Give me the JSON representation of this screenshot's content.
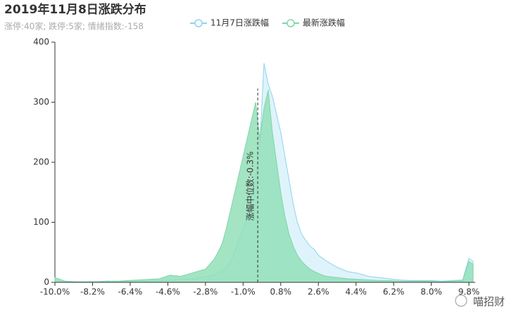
{
  "chart_data": {
    "type": "area",
    "title": "2019年11月8日涨跌分布",
    "subtitle": "涨停:40家; 跌停:5家; 情绪指数:-158",
    "watermark": "喵招财",
    "x": [
      -10,
      -9.5,
      -9,
      -8.5,
      -8,
      -7.5,
      -7,
      -6.5,
      -6,
      -5.5,
      -5,
      -4.5,
      -4,
      -3.5,
      -3,
      -2.8,
      -2.6,
      -2.4,
      -2.2,
      -2,
      -1.8,
      -1.6,
      -1.4,
      -1.2,
      -1,
      -0.8,
      -0.6,
      -0.4,
      -0.2,
      0,
      0.2,
      0.4,
      0.6,
      0.8,
      1,
      1.2,
      1.4,
      1.6,
      1.8,
      2,
      2.2,
      2.4,
      2.6,
      2.8,
      3,
      3.5,
      4,
      4.5,
      5,
      5.5,
      6,
      6.5,
      7,
      7.5,
      8,
      8.5,
      9,
      9.5,
      9.8,
      10
    ],
    "series": [
      {
        "name": "11月7日涨跌幅",
        "color": "#8fd3f0",
        "fill": "#dff3fb",
        "values": [
          3,
          1,
          1,
          1,
          1,
          2,
          1,
          2,
          2,
          2,
          3,
          3,
          5,
          5,
          8,
          10,
          10,
          12,
          15,
          20,
          25,
          35,
          50,
          70,
          90,
          110,
          140,
          170,
          230,
          365,
          330,
          310,
          280,
          250,
          210,
          170,
          130,
          100,
          80,
          70,
          60,
          55,
          45,
          40,
          35,
          25,
          18,
          15,
          10,
          8,
          6,
          4,
          3,
          3,
          3,
          2,
          3,
          4,
          40,
          35
        ]
      },
      {
        "name": "最新涨跌幅",
        "color": "#7fd6a8",
        "fill": "#93dfb8",
        "values": [
          8,
          2,
          1,
          1,
          1,
          2,
          2,
          3,
          4,
          5,
          6,
          12,
          10,
          15,
          20,
          22,
          30,
          38,
          50,
          65,
          90,
          120,
          150,
          180,
          210,
          240,
          270,
          300,
          240,
          290,
          320,
          250,
          200,
          150,
          110,
          80,
          60,
          45,
          35,
          28,
          22,
          18,
          15,
          12,
          10,
          8,
          6,
          5,
          4,
          3,
          3,
          2,
          2,
          2,
          2,
          1,
          2,
          3,
          35,
          30
        ]
      }
    ],
    "median_line": {
      "value": -0.3,
      "label": "涨幅中位数:-0.3%"
    },
    "xlim": [
      -10,
      10.1
    ],
    "xticks": [
      {
        "value": -10,
        "label": "-10.0%"
      },
      {
        "value": -8.2,
        "label": "-8.2%"
      },
      {
        "value": -6.4,
        "label": "-6.4%"
      },
      {
        "value": -4.6,
        "label": "-4.6%"
      },
      {
        "value": -2.8,
        "label": "-2.8%"
      },
      {
        "value": -1,
        "label": "-1.0%"
      },
      {
        "value": 0.8,
        "label": "0.8%"
      },
      {
        "value": 2.6,
        "label": "2.6%"
      },
      {
        "value": 4.4,
        "label": "4.4%"
      },
      {
        "value": 6.2,
        "label": "6.2%"
      },
      {
        "value": 8,
        "label": "8.0%"
      },
      {
        "value": 9.8,
        "label": "9.8%"
      }
    ],
    "ylim": [
      0,
      400
    ],
    "yticks": [
      0,
      100,
      200,
      300,
      400
    ]
  }
}
